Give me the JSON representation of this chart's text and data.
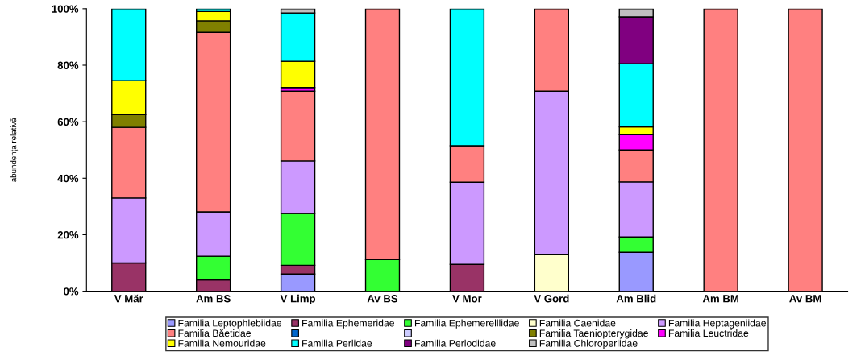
{
  "chart_data": {
    "type": "bar",
    "stacked": true,
    "ylabel": "abundenţa relativă",
    "categories": [
      "V Măr",
      "Am BS",
      "V Limp",
      "Av BS",
      "V Mor",
      "V Gord",
      "Am Blid",
      "Am BM",
      "Av BM"
    ],
    "ylim": [
      0,
      100
    ],
    "yticks": [
      {
        "value": 0,
        "label": "0%"
      },
      {
        "value": 20,
        "label": "20%"
      },
      {
        "value": 40,
        "label": "40%"
      },
      {
        "value": 60,
        "label": "60%"
      },
      {
        "value": 80,
        "label": "80%"
      },
      {
        "value": 100,
        "label": "100%"
      }
    ],
    "grid": false,
    "legend": "bottom",
    "series": [
      {
        "name": "Familia Leptophlebiidae",
        "color": "#9999ff",
        "values": [
          0,
          0,
          6.1,
          0,
          0,
          0,
          13.8,
          0,
          0
        ]
      },
      {
        "name": "Familia Ephemeridae",
        "color": "#993366",
        "values": [
          10,
          4,
          3.1,
          0,
          9.5,
          0,
          0,
          0,
          0
        ]
      },
      {
        "name": "Familia Ephemerelllidae",
        "color": "#33ff33",
        "values": [
          0,
          8.4,
          18.3,
          11.2,
          0,
          0,
          5.4,
          0,
          0
        ]
      },
      {
        "name": "Familia Caenidae",
        "color": "#ffffcc",
        "values": [
          0,
          0,
          0,
          0,
          0,
          12.9,
          0,
          0,
          0
        ]
      },
      {
        "name": "Familia Heptageniidae",
        "color": "#cc99ff",
        "values": [
          23,
          15.7,
          18.6,
          0,
          29.1,
          57.9,
          19.5,
          0,
          0
        ]
      },
      {
        "name": "Familia Băetidae",
        "color": "#ff8080",
        "values": [
          25,
          63.5,
          24.7,
          88.8,
          12.9,
          29.2,
          11.3,
          100,
          100
        ]
      },
      {
        "color": "#0066cc",
        "values": [
          0,
          0,
          0,
          0,
          0,
          0,
          0,
          0,
          0
        ]
      },
      {
        "color": "#ccccff",
        "values": [
          0,
          0,
          0,
          0,
          0,
          0,
          0,
          0,
          0
        ]
      },
      {
        "name": "Familia Taeniopterygidae",
        "color": "#808000",
        "values": [
          4.5,
          4.1,
          0,
          0,
          0,
          0,
          0,
          0,
          0
        ]
      },
      {
        "name": "Familia Leuctridae",
        "color": "#ff00ff",
        "values": [
          0,
          0,
          1.3,
          0,
          0,
          0,
          5.4,
          0,
          0
        ]
      },
      {
        "name": "Familia Nemouridae",
        "color": "#ffff00",
        "values": [
          12,
          3.3,
          9.3,
          0,
          0,
          0,
          2.8,
          0,
          0
        ]
      },
      {
        "name": "Familia Perlidae",
        "color": "#00ffff",
        "values": [
          25.5,
          1,
          17.1,
          0,
          48.5,
          0,
          22.3,
          0,
          0
        ]
      },
      {
        "name": "Familia Perlodidae",
        "color": "#800080",
        "values": [
          0,
          0,
          0,
          0,
          0,
          0,
          16.6,
          0,
          0
        ]
      },
      {
        "name": "Familia Chloroperlidae",
        "color": "#c0c0c0",
        "values": [
          0,
          0,
          1.5,
          0,
          0,
          0,
          2.9,
          0,
          0
        ]
      }
    ]
  }
}
